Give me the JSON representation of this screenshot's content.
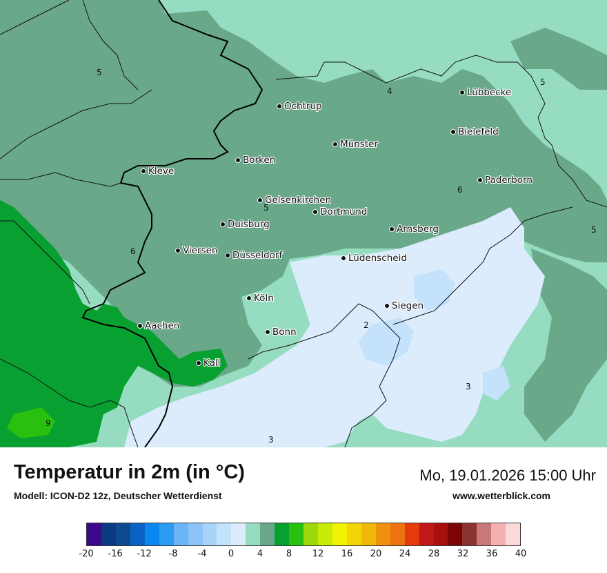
{
  "map": {
    "cities": [
      {
        "name": "Ochtrup",
        "id": "ochtrup"
      },
      {
        "name": "Lübbecke",
        "id": "luebbecke"
      },
      {
        "name": "Bielefeld",
        "id": "bielefeld"
      },
      {
        "name": "Münster",
        "id": "muenster"
      },
      {
        "name": "Borken",
        "id": "borken"
      },
      {
        "name": "Kleve",
        "id": "kleve"
      },
      {
        "name": "Paderborn",
        "id": "paderborn"
      },
      {
        "name": "Gelsenkirchen",
        "id": "gelsenkirchen"
      },
      {
        "name": "Dortmund",
        "id": "dortmund"
      },
      {
        "name": "Duisburg",
        "id": "duisburg"
      },
      {
        "name": "Arnsberg",
        "id": "arnsberg"
      },
      {
        "name": "Viersen",
        "id": "viersen"
      },
      {
        "name": "Düsseldorf",
        "id": "duesseldorf"
      },
      {
        "name": "Lüdenscheid",
        "id": "luedenscheid"
      },
      {
        "name": "Köln",
        "id": "koeln"
      },
      {
        "name": "Siegen",
        "id": "siegen"
      },
      {
        "name": "Aachen",
        "id": "aachen"
      },
      {
        "name": "Bonn",
        "id": "bonn"
      },
      {
        "name": "Kall",
        "id": "kall"
      }
    ],
    "contour_labels": [
      "5",
      "4",
      "5",
      "5",
      "6",
      "5",
      "6",
      "2",
      "3",
      "3",
      "9"
    ]
  },
  "footer": {
    "title": "Temperatur in 2m (in °C)",
    "model": "Modell: ICON-D2 12z, Deutscher Wetterdienst",
    "datetime": "Mo, 19.01.2026 15:00 Uhr",
    "website": "www.wetterblick.com"
  },
  "legend": {
    "colors": [
      "#3b0a8c",
      "#0b3a80",
      "#0d4a8f",
      "#0c62c2",
      "#0a86f0",
      "#2a9cf5",
      "#6ab4f7",
      "#8cc4f8",
      "#a8d4fa",
      "#c4e2fb",
      "#dcecfd",
      "#96dcc0",
      "#6aa88a",
      "#08a030",
      "#2ac010",
      "#9ed80a",
      "#c8ec08",
      "#f0f404",
      "#f4d608",
      "#f0b808",
      "#f0900c",
      "#ec7410",
      "#e43a0c",
      "#c01818",
      "#a81010",
      "#7c0404",
      "#8c3434",
      "#c87878",
      "#f4b0b0",
      "#fcd8d8"
    ],
    "ticks": [
      "-20",
      "-16",
      "-12",
      "-8",
      "-4",
      "0",
      "4",
      "8",
      "12",
      "16",
      "20",
      "24",
      "28",
      "32",
      "36",
      "40"
    ]
  }
}
